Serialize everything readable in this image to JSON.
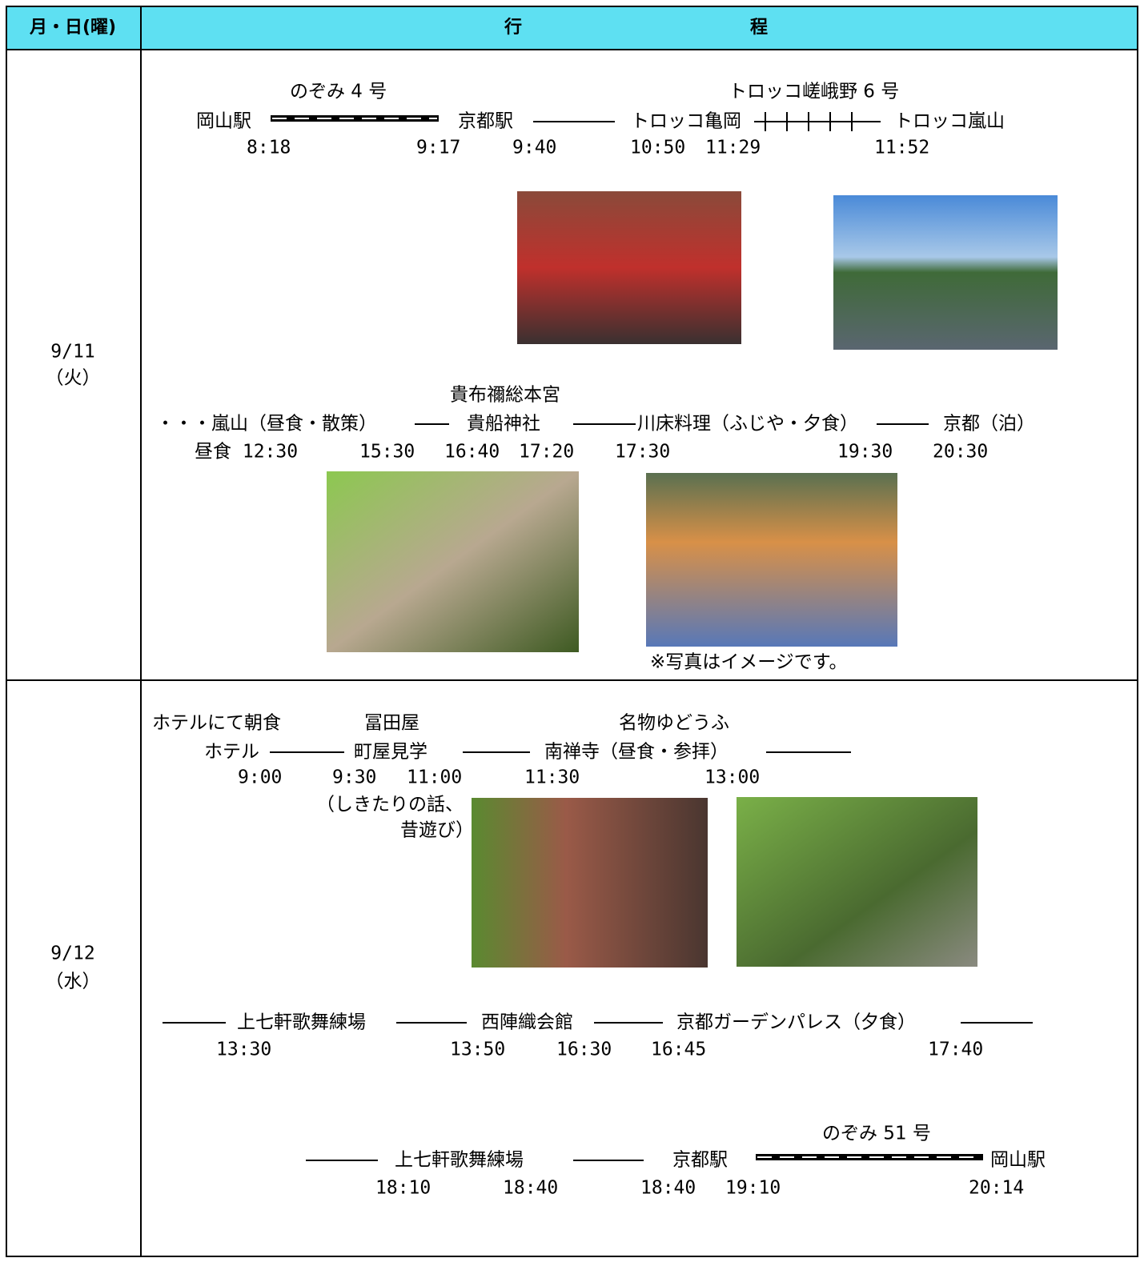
{
  "header": {
    "date": "月・日(曜)",
    "schedule_1": "行",
    "schedule_2": "程"
  },
  "days": [
    {
      "date": "9/11",
      "weekday": "（火）",
      "items": [
        "のぞみ 4 号",
        "トロッコ嵯峨野 6 号",
        "岡山駅",
        "京都駅",
        "トロッコ亀岡",
        "トロッコ嵐山",
        "8:18",
        "9:17",
        "9:40",
        "10:50",
        "11:29",
        "11:52",
        "貴布禰総本宮",
        "・・・嵐山（昼食・散策）",
        "貴船神社",
        "川床料理（ふじや・夕食）",
        "京都（泊）",
        "昼食 12:30",
        "15:30",
        "16:40",
        "17:20",
        "17:30",
        "19:30",
        "20:30",
        "※写真はイメージです。"
      ]
    },
    {
      "date": "9/12",
      "weekday": "（水）",
      "items": [
        "ホテルにて朝食",
        "冨田屋",
        "名物ゆどうふ",
        "ホテル",
        "町屋見学",
        "南禅寺（昼食・参拝）",
        "9:00",
        "9:30",
        "11:00",
        "11:30",
        "13:00",
        "（しきたりの話、",
        "昔遊び）",
        "上七軒歌舞練場",
        "西陣織会館",
        "京都ガーデンパレス（夕食）",
        "13:30",
        "13:50",
        "16:30",
        "16:45",
        "17:40",
        "のぞみ 51 号",
        "上七軒歌舞練場",
        "京都駅",
        "岡山駅",
        "18:10",
        "18:40",
        "18:40",
        "19:10",
        "20:14"
      ]
    }
  ]
}
